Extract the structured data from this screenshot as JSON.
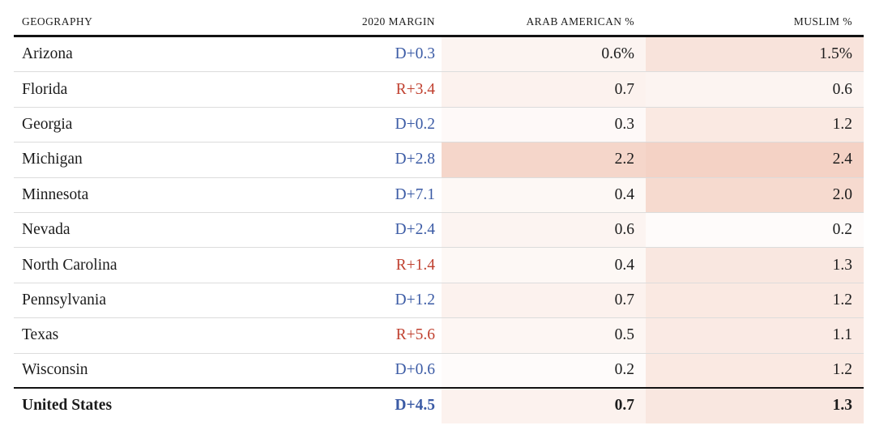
{
  "chart_data": {
    "type": "table",
    "columns": [
      "GEOGRAPHY",
      "2020 MARGIN",
      "ARAB AMERICAN %",
      "MUSLIM %"
    ],
    "rows": [
      {
        "geography": "Arizona",
        "margin": "D+0.3",
        "party": "D",
        "arab_american": "0.6%",
        "arab_american_value": 0.6,
        "muslim": "1.5%",
        "muslim_value": 1.5
      },
      {
        "geography": "Florida",
        "margin": "R+3.4",
        "party": "R",
        "arab_american": "0.7",
        "arab_american_value": 0.7,
        "muslim": "0.6",
        "muslim_value": 0.6
      },
      {
        "geography": "Georgia",
        "margin": "D+0.2",
        "party": "D",
        "arab_american": "0.3",
        "arab_american_value": 0.3,
        "muslim": "1.2",
        "muslim_value": 1.2
      },
      {
        "geography": "Michigan",
        "margin": "D+2.8",
        "party": "D",
        "arab_american": "2.2",
        "arab_american_value": 2.2,
        "muslim": "2.4",
        "muslim_value": 2.4
      },
      {
        "geography": "Minnesota",
        "margin": "D+7.1",
        "party": "D",
        "arab_american": "0.4",
        "arab_american_value": 0.4,
        "muslim": "2.0",
        "muslim_value": 2.0
      },
      {
        "geography": "Nevada",
        "margin": "D+2.4",
        "party": "D",
        "arab_american": "0.6",
        "arab_american_value": 0.6,
        "muslim": "0.2",
        "muslim_value": 0.2
      },
      {
        "geography": "North Carolina",
        "margin": "R+1.4",
        "party": "R",
        "arab_american": "0.4",
        "arab_american_value": 0.4,
        "muslim": "1.3",
        "muslim_value": 1.3
      },
      {
        "geography": "Pennsylvania",
        "margin": "D+1.2",
        "party": "D",
        "arab_american": "0.7",
        "arab_american_value": 0.7,
        "muslim": "1.2",
        "muslim_value": 1.2
      },
      {
        "geography": "Texas",
        "margin": "R+5.6",
        "party": "R",
        "arab_american": "0.5",
        "arab_american_value": 0.5,
        "muslim": "1.1",
        "muslim_value": 1.1
      },
      {
        "geography": "Wisconsin",
        "margin": "D+0.6",
        "party": "D",
        "arab_american": "0.2",
        "arab_american_value": 0.2,
        "muslim": "1.2",
        "muslim_value": 1.2
      }
    ],
    "total_row": {
      "geography": "United States",
      "margin": "D+4.5",
      "party": "D",
      "arab_american": "0.7",
      "arab_american_value": 0.7,
      "muslim": "1.3",
      "muslim_value": 1.3
    },
    "layout": {
      "grid": "off",
      "heatmap_columns": [
        "ARAB AMERICAN %",
        "MUSLIM %"
      ],
      "shading": "cell background intensity proportional to percentage value"
    }
  },
  "colors": {
    "dem_blue": "#3b5ba5",
    "rep_red": "#c0402f",
    "rule_black": "#121212",
    "row_divider": "#dcdcdc",
    "text": "#1c1c1c",
    "heatmap": {
      "min_color": "#ffffff",
      "max_color": "#f4d2c5",
      "scale_max": 2.4
    }
  }
}
